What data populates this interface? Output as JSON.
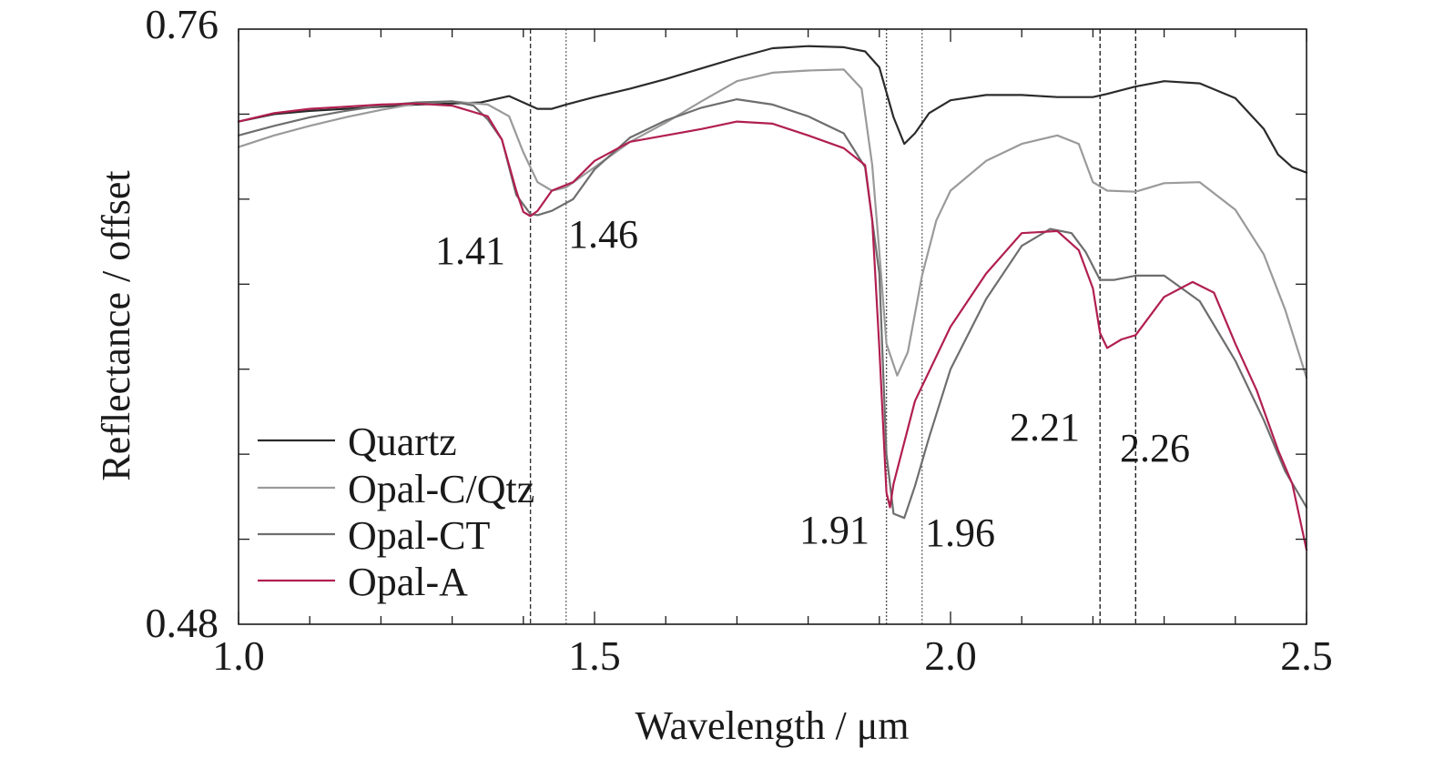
{
  "chart_data": {
    "type": "line",
    "xlabel": "Wavelength / μm",
    "ylabel": "Reflectance / offset",
    "xlim": [
      1.0,
      2.5
    ],
    "ylim": [
      0.48,
      0.76
    ],
    "x_tick_labels": [
      {
        "value": 1.0,
        "label": "1.0"
      },
      {
        "value": 1.5,
        "label": "1.5"
      },
      {
        "value": 2.0,
        "label": "2.0"
      },
      {
        "value": 2.5,
        "label": "2.5"
      }
    ],
    "y_tick_labels": [
      {
        "value": 0.76,
        "label": "0.76"
      },
      {
        "value": 0.48,
        "label": "0.48"
      }
    ],
    "y_minor_ticks": [
      0.52,
      0.56,
      0.6,
      0.64,
      0.68,
      0.72
    ],
    "grid": false,
    "legend_position": "bottom-left",
    "series": [
      {
        "name": "Quartz",
        "color": "#2b2b2b",
        "points": [
          [
            1.0,
            0.7165
          ],
          [
            1.05,
            0.72
          ],
          [
            1.1,
            0.7215
          ],
          [
            1.15,
            0.7225
          ],
          [
            1.2,
            0.7235
          ],
          [
            1.25,
            0.7245
          ],
          [
            1.3,
            0.725
          ],
          [
            1.34,
            0.7255
          ],
          [
            1.38,
            0.7285
          ],
          [
            1.4,
            0.7255
          ],
          [
            1.42,
            0.7225
          ],
          [
            1.44,
            0.7225
          ],
          [
            1.46,
            0.7245
          ],
          [
            1.5,
            0.728
          ],
          [
            1.55,
            0.732
          ],
          [
            1.6,
            0.7365
          ],
          [
            1.65,
            0.7415
          ],
          [
            1.7,
            0.7465
          ],
          [
            1.75,
            0.751
          ],
          [
            1.8,
            0.752
          ],
          [
            1.85,
            0.7515
          ],
          [
            1.88,
            0.7495
          ],
          [
            1.9,
            0.742
          ],
          [
            1.92,
            0.7185
          ],
          [
            1.935,
            0.706
          ],
          [
            1.95,
            0.711
          ],
          [
            1.97,
            0.7205
          ],
          [
            2.0,
            0.7265
          ],
          [
            2.05,
            0.729
          ],
          [
            2.1,
            0.729
          ],
          [
            2.15,
            0.728
          ],
          [
            2.2,
            0.728
          ],
          [
            2.22,
            0.7295
          ],
          [
            2.26,
            0.733
          ],
          [
            2.3,
            0.7355
          ],
          [
            2.35,
            0.7345
          ],
          [
            2.4,
            0.7275
          ],
          [
            2.44,
            0.713
          ],
          [
            2.46,
            0.701
          ],
          [
            2.48,
            0.695
          ],
          [
            2.5,
            0.6925
          ]
        ]
      },
      {
        "name": "Opal-C/Qtz",
        "color": "#9a9a9a",
        "points": [
          [
            1.0,
            0.7045
          ],
          [
            1.05,
            0.71
          ],
          [
            1.1,
            0.7145
          ],
          [
            1.15,
            0.7185
          ],
          [
            1.2,
            0.722
          ],
          [
            1.25,
            0.725
          ],
          [
            1.3,
            0.726
          ],
          [
            1.35,
            0.7245
          ],
          [
            1.38,
            0.719
          ],
          [
            1.4,
            0.702
          ],
          [
            1.42,
            0.688
          ],
          [
            1.44,
            0.684
          ],
          [
            1.46,
            0.6855
          ],
          [
            1.5,
            0.695
          ],
          [
            1.55,
            0.707
          ],
          [
            1.6,
            0.716
          ],
          [
            1.65,
            0.726
          ],
          [
            1.7,
            0.7355
          ],
          [
            1.75,
            0.7395
          ],
          [
            1.8,
            0.7405
          ],
          [
            1.85,
            0.741
          ],
          [
            1.875,
            0.732
          ],
          [
            1.89,
            0.696
          ],
          [
            1.9,
            0.655
          ],
          [
            1.91,
            0.612
          ],
          [
            1.925,
            0.597
          ],
          [
            1.94,
            0.608
          ],
          [
            1.96,
            0.644
          ],
          [
            1.98,
            0.67
          ],
          [
            2.0,
            0.684
          ],
          [
            2.05,
            0.698
          ],
          [
            2.1,
            0.706
          ],
          [
            2.15,
            0.71
          ],
          [
            2.18,
            0.706
          ],
          [
            2.2,
            0.688
          ],
          [
            2.22,
            0.684
          ],
          [
            2.26,
            0.6835
          ],
          [
            2.3,
            0.6875
          ],
          [
            2.35,
            0.688
          ],
          [
            2.4,
            0.675
          ],
          [
            2.44,
            0.654
          ],
          [
            2.47,
            0.628
          ],
          [
            2.5,
            0.596
          ]
        ]
      },
      {
        "name": "Opal-CT",
        "color": "#6e6e6e",
        "points": [
          [
            1.0,
            0.71
          ],
          [
            1.05,
            0.7145
          ],
          [
            1.1,
            0.7185
          ],
          [
            1.15,
            0.7215
          ],
          [
            1.2,
            0.724
          ],
          [
            1.25,
            0.7255
          ],
          [
            1.3,
            0.726
          ],
          [
            1.33,
            0.724
          ],
          [
            1.35,
            0.7175
          ],
          [
            1.37,
            0.708
          ],
          [
            1.39,
            0.682
          ],
          [
            1.41,
            0.673
          ],
          [
            1.42,
            0.6725
          ],
          [
            1.44,
            0.6745
          ],
          [
            1.47,
            0.68
          ],
          [
            1.5,
            0.694
          ],
          [
            1.55,
            0.709
          ],
          [
            1.6,
            0.717
          ],
          [
            1.65,
            0.723
          ],
          [
            1.7,
            0.727
          ],
          [
            1.75,
            0.7245
          ],
          [
            1.8,
            0.719
          ],
          [
            1.85,
            0.711
          ],
          [
            1.88,
            0.695
          ],
          [
            1.9,
            0.645
          ],
          [
            1.91,
            0.56
          ],
          [
            1.92,
            0.532
          ],
          [
            1.935,
            0.53
          ],
          [
            1.95,
            0.545
          ],
          [
            1.97,
            0.568
          ],
          [
            2.0,
            0.6
          ],
          [
            2.05,
            0.633
          ],
          [
            2.1,
            0.658
          ],
          [
            2.14,
            0.666
          ],
          [
            2.17,
            0.664
          ],
          [
            2.19,
            0.655
          ],
          [
            2.21,
            0.642
          ],
          [
            2.23,
            0.642
          ],
          [
            2.26,
            0.644
          ],
          [
            2.3,
            0.644
          ],
          [
            2.35,
            0.632
          ],
          [
            2.4,
            0.604
          ],
          [
            2.44,
            0.576
          ],
          [
            2.47,
            0.552
          ],
          [
            2.5,
            0.535
          ]
        ]
      },
      {
        "name": "Opal-A",
        "color": "#b11f4e",
        "points": [
          [
            1.0,
            0.7165
          ],
          [
            1.05,
            0.7205
          ],
          [
            1.1,
            0.7225
          ],
          [
            1.15,
            0.7235
          ],
          [
            1.2,
            0.7245
          ],
          [
            1.25,
            0.725
          ],
          [
            1.3,
            0.724
          ],
          [
            1.35,
            0.719
          ],
          [
            1.37,
            0.708
          ],
          [
            1.39,
            0.684
          ],
          [
            1.4,
            0.674
          ],
          [
            1.41,
            0.672
          ],
          [
            1.42,
            0.6745
          ],
          [
            1.44,
            0.684
          ],
          [
            1.47,
            0.688
          ],
          [
            1.5,
            0.698
          ],
          [
            1.55,
            0.707
          ],
          [
            1.6,
            0.71
          ],
          [
            1.65,
            0.713
          ],
          [
            1.7,
            0.7165
          ],
          [
            1.75,
            0.7155
          ],
          [
            1.8,
            0.71
          ],
          [
            1.85,
            0.704
          ],
          [
            1.88,
            0.696
          ],
          [
            1.89,
            0.67
          ],
          [
            1.9,
            0.61
          ],
          [
            1.91,
            0.542
          ],
          [
            1.915,
            0.535
          ],
          [
            1.92,
            0.546
          ],
          [
            1.95,
            0.585
          ],
          [
            2.0,
            0.62
          ],
          [
            2.05,
            0.645
          ],
          [
            2.1,
            0.664
          ],
          [
            2.15,
            0.665
          ],
          [
            2.18,
            0.656
          ],
          [
            2.2,
            0.638
          ],
          [
            2.21,
            0.617
          ],
          [
            2.22,
            0.61
          ],
          [
            2.24,
            0.614
          ],
          [
            2.26,
            0.616
          ],
          [
            2.3,
            0.634
          ],
          [
            2.34,
            0.641
          ],
          [
            2.37,
            0.636
          ],
          [
            2.4,
            0.612
          ],
          [
            2.43,
            0.59
          ],
          [
            2.46,
            0.562
          ],
          [
            2.48,
            0.546
          ],
          [
            2.5,
            0.515
          ]
        ]
      }
    ],
    "vlines": [
      {
        "x": 1.41,
        "style": "dashed",
        "color": "#333333"
      },
      {
        "x": 1.46,
        "style": "dotted",
        "color": "#777777"
      },
      {
        "x": 1.91,
        "style": "dotted",
        "color": "#555555"
      },
      {
        "x": 1.96,
        "style": "dotted",
        "color": "#777777"
      },
      {
        "x": 2.21,
        "style": "dashed",
        "color": "#222222"
      },
      {
        "x": 2.26,
        "style": "dashed",
        "color": "#222222"
      }
    ],
    "annotations": [
      "1.41",
      "1.46",
      "1.91",
      "1.96",
      "2.21",
      "2.26"
    ]
  }
}
